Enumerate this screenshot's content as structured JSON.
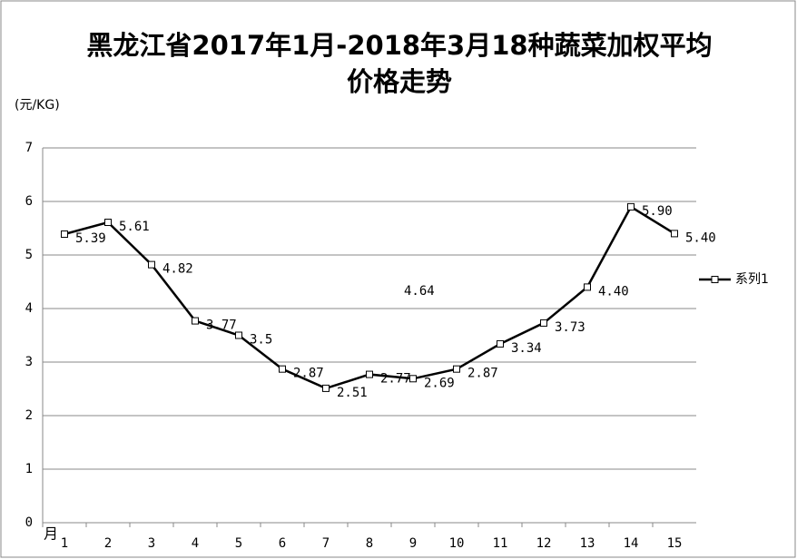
{
  "chart_data": {
    "type": "line",
    "title": "黑龙江省2017年1月-2018年3月18种蔬菜加权平均\n价格走势",
    "y_label": "(元/KG)",
    "x_label": "月",
    "categories": [
      "1",
      "2",
      "3",
      "4",
      "5",
      "6",
      "7",
      "8",
      "9",
      "10",
      "11",
      "12",
      "13",
      "14",
      "15"
    ],
    "series": [
      {
        "name": "系列1",
        "color": "#000000",
        "values": [
          5.39,
          5.61,
          4.82,
          3.77,
          3.5,
          2.87,
          2.51,
          2.77,
          2.69,
          2.87,
          3.34,
          3.73,
          4.4,
          5.9,
          5.4
        ],
        "value_labels": [
          "5.39",
          "5.61",
          "4.82",
          "3.77",
          "3.5",
          "2.87",
          "2.51",
          "2.77",
          "2.69",
          "2.87",
          "3.34",
          "3.73",
          "4.40",
          "5.90",
          "5.40"
        ]
      }
    ],
    "annotations": [
      "4.64"
    ],
    "ylim": [
      0,
      7
    ],
    "yticks": [
      0,
      1,
      2,
      3,
      4,
      5,
      6,
      7
    ],
    "grid": true,
    "legend": "right"
  }
}
